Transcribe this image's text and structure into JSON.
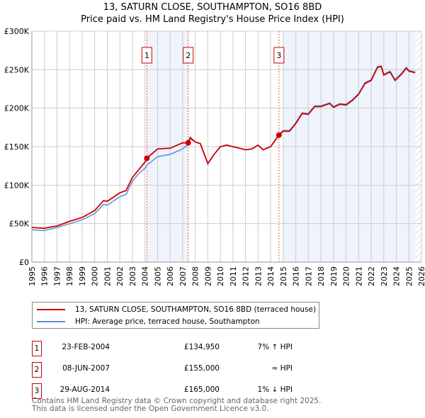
{
  "chart_data": {
    "type": "line",
    "title": "13, SATURN CLOSE, SOUTHAMPTON, SO16 8BD",
    "subtitle": "Price paid vs. HM Land Registry's House Price Index (HPI)",
    "xlim": [
      1995,
      2026
    ],
    "ylim": [
      0,
      300000
    ],
    "y_ticks": [
      0,
      50000,
      100000,
      150000,
      200000,
      250000,
      300000
    ],
    "y_tick_labels": [
      "£0",
      "£50K",
      "£100K",
      "£150K",
      "£200K",
      "£250K",
      "£300K"
    ],
    "x_ticks": [
      1995,
      1996,
      1997,
      1998,
      1999,
      2000,
      2001,
      2002,
      2003,
      2004,
      2005,
      2006,
      2007,
      2008,
      2009,
      2010,
      2011,
      2012,
      2013,
      2014,
      2015,
      2016,
      2017,
      2018,
      2019,
      2020,
      2021,
      2022,
      2023,
      2024,
      2025,
      2026
    ],
    "grid": true,
    "x": [
      1995,
      1996,
      1997,
      1998,
      1999,
      2000,
      2000.7,
      2001,
      2002,
      2002.5,
      2003,
      2003.5,
      2004,
      2004.15,
      2005,
      2006,
      2007,
      2007.44,
      2007.6,
      2008,
      2008.4,
      2009,
      2009.5,
      2010,
      2010.5,
      2011,
      2012,
      2012.5,
      2013,
      2013.4,
      2014,
      2014.66,
      2015,
      2015.5,
      2016,
      2016.5,
      2017,
      2017.5,
      2018,
      2018.7,
      2019,
      2019.5,
      2020,
      2020.5,
      2021,
      2021.5,
      2022,
      2022.5,
      2022.8,
      2023,
      2023.5,
      2023.9,
      2024.4,
      2024.8,
      2025,
      2025.5
    ],
    "series": [
      {
        "name": "13, SATURN CLOSE, SOUTHAMPTON, SO16 8BD (terraced house)",
        "color": "#cc0000",
        "values": [
          45000,
          44000,
          47000,
          53000,
          58000,
          67000,
          80000,
          79000,
          90000,
          93000,
          110000,
          120000,
          130000,
          134950,
          147000,
          148000,
          155000,
          155000,
          162000,
          156000,
          154000,
          128000,
          140000,
          150000,
          152000,
          150000,
          146000,
          147000,
          152000,
          146000,
          150000,
          165000,
          170000,
          170000,
          180000,
          193000,
          192000,
          202000,
          202000,
          206000,
          201000,
          205000,
          204000,
          210000,
          218000,
          232000,
          236000,
          253000,
          254000,
          243000,
          247000,
          236000,
          244000,
          252000,
          248000,
          246000
        ]
      },
      {
        "name": "HPI: Average price, terraced house, Southampton",
        "color": "#5b8fd6",
        "values": [
          42000,
          41000,
          45000,
          50000,
          55000,
          63000,
          75000,
          74000,
          85000,
          88000,
          105000,
          115000,
          122000,
          126000,
          137000,
          140000,
          147000,
          153000,
          160000,
          156000,
          154000,
          128000,
          140000,
          150000,
          152000,
          150000,
          146000,
          147000,
          152000,
          146000,
          150000,
          166000,
          171000,
          171000,
          181000,
          194000,
          193000,
          203000,
          203000,
          207000,
          202000,
          206000,
          205000,
          211000,
          219000,
          233000,
          237000,
          254000,
          255000,
          244000,
          248000,
          237000,
          245000,
          253000,
          249000,
          247000
        ]
      }
    ],
    "sales": [
      {
        "n": "1",
        "x": 2004.15,
        "y": 134950,
        "date": "23-FEB-2004",
        "price": "£134,950",
        "hpi": "7% ↑ HPI"
      },
      {
        "n": "2",
        "x": 2007.44,
        "y": 155000,
        "date": "08-JUN-2007",
        "price": "£155,000",
        "hpi": "≈ HPI"
      },
      {
        "n": "3",
        "x": 2014.66,
        "y": 165000,
        "date": "29-AUG-2014",
        "price": "£165,000",
        "hpi": "1% ↓ HPI"
      }
    ],
    "shaded_ranges": [
      [
        2004.15,
        2007.44
      ],
      [
        2015,
        2025.5
      ]
    ],
    "forecast_hatch_from": 2025.5,
    "legend_placement": "below"
  },
  "footer": [
    "Contains HM Land Registry data © Crown copyright and database right 2025.",
    "This data is licensed under the Open Government Licence v3.0."
  ]
}
